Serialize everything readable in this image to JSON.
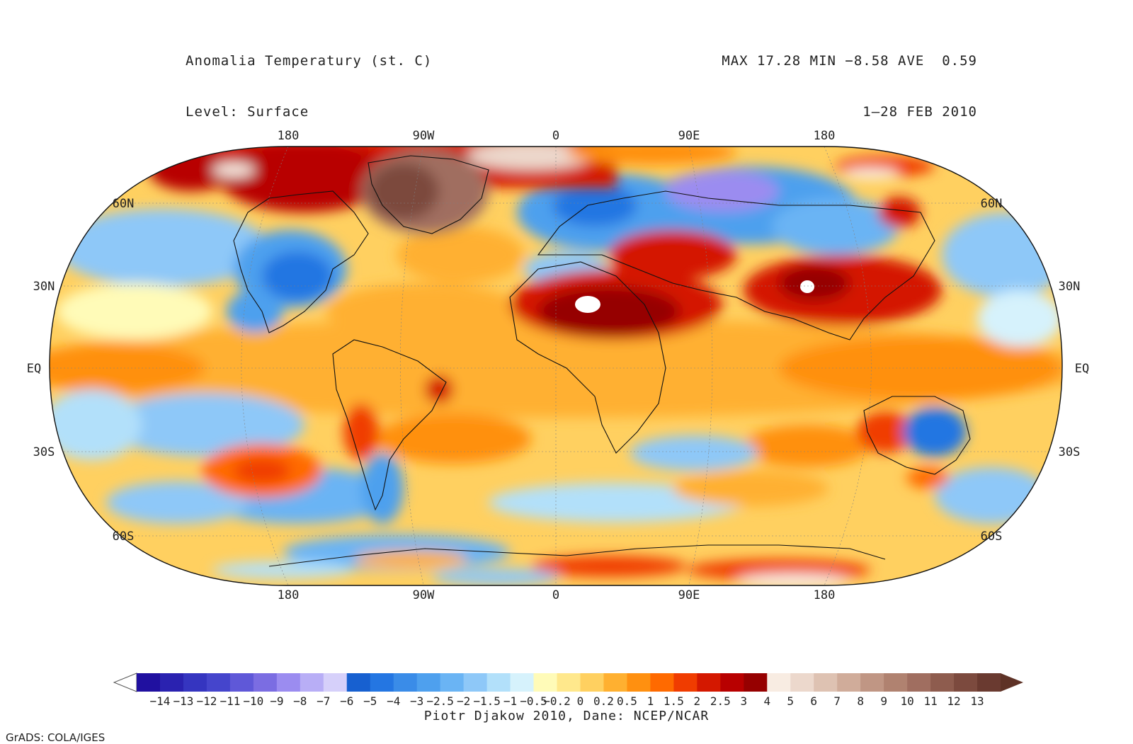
{
  "header": {
    "title": "Anomalia Temperatury (st. C)",
    "level": "Level: Surface",
    "stats": "MAX 17.28 MIN −8.58 AVE  0.59",
    "period": "1–28 FEB 2010"
  },
  "map": {
    "projection": "Robinson",
    "lon_labels": [
      "180",
      "90W",
      "0",
      "90E",
      "180"
    ],
    "lat_labels_left": [
      "60N",
      "30N",
      "EQ",
      "30S",
      "60S"
    ],
    "lat_labels_right": [
      "60N",
      "30N",
      "EQ",
      "30S",
      "60S"
    ]
  },
  "colorbar": {
    "colors": [
      "#2010a0",
      "#2a22b0",
      "#3535c0",
      "#4545cc",
      "#5f58d8",
      "#7b6de2",
      "#9b8cf0",
      "#b8aef6",
      "#d6d0fa",
      "#1760d0",
      "#2476e2",
      "#3a8ce8",
      "#4ea0ee",
      "#6ab4f4",
      "#8ec8f8",
      "#b2e0fa",
      "#d6f2fc",
      "#fffbb8",
      "#ffe88c",
      "#ffd060",
      "#ffb030",
      "#ff9010",
      "#ff6a00",
      "#f03c00",
      "#d41800",
      "#b80000",
      "#960000",
      "#f8ece2",
      "#ecd8cc",
      "#deC2b2",
      "#d0ac9a",
      "#c09684",
      "#b08270",
      "#a06e60",
      "#8e5c4e",
      "#7c4a3e",
      "#6a3a30"
    ],
    "tick_labels": [
      "−14",
      "−13",
      "−12",
      "−11",
      "−10",
      "−9",
      "−8",
      "−7",
      "−6",
      "−5",
      "−4",
      "−3",
      "−2.5",
      "−2",
      "−1.5",
      "−1",
      "−0.5",
      "−0.2",
      "0",
      "0.2",
      "0.5",
      "1",
      "1.5",
      "2",
      "2.5",
      "3",
      "4",
      "5",
      "6",
      "7",
      "8",
      "9",
      "10",
      "11",
      "12",
      "13"
    ]
  },
  "footer": {
    "credit": "Piotr Djakow 2010, Dane: NCEP/NCAR",
    "grads": "GrADS: COLA/IGES"
  }
}
